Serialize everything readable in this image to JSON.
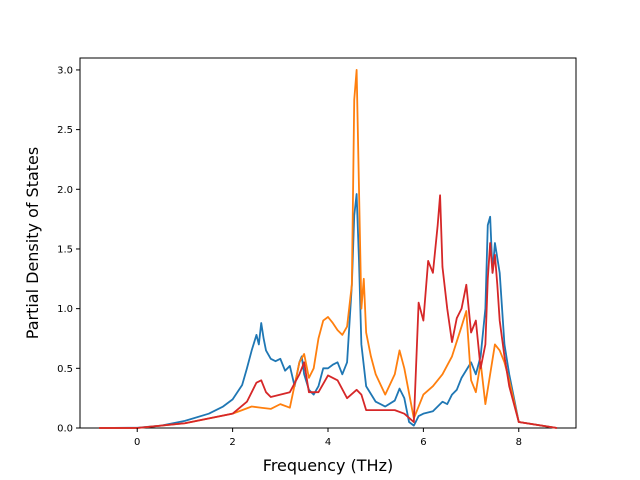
{
  "chart_data": {
    "type": "line",
    "title": "",
    "xlabel": "Frequency (THz)",
    "ylabel": "Partial Density of States",
    "xlim": [
      -1.2,
      9.2
    ],
    "ylim": [
      0,
      3.1
    ],
    "xticks": [
      0,
      2,
      4,
      6,
      8
    ],
    "xtick_labels": [
      "0",
      "2",
      "4",
      "6",
      "8"
    ],
    "yticks": [
      0,
      0.5,
      1.0,
      1.5,
      2.0,
      2.5,
      3.0
    ],
    "ytick_labels": [
      "0.0",
      "0.5",
      "1.0",
      "1.5",
      "2.0",
      "2.5",
      "3.0"
    ],
    "grid": false,
    "legend": "none",
    "series": [
      {
        "color": "#1f77b4",
        "x": [
          -0.8,
          0,
          0.5,
          1.0,
          1.5,
          1.8,
          2.0,
          2.2,
          2.3,
          2.4,
          2.5,
          2.55,
          2.6,
          2.65,
          2.7,
          2.8,
          2.9,
          3.0,
          3.1,
          3.2,
          3.3,
          3.4,
          3.45,
          3.5,
          3.6,
          3.7,
          3.8,
          3.9,
          4.0,
          4.1,
          4.2,
          4.3,
          4.4,
          4.5,
          4.55,
          4.6,
          4.65,
          4.7,
          4.8,
          5.0,
          5.2,
          5.4,
          5.5,
          5.6,
          5.7,
          5.8,
          5.9,
          6.0,
          6.2,
          6.4,
          6.5,
          6.6,
          6.7,
          6.8,
          7.0,
          7.1,
          7.2,
          7.3,
          7.35,
          7.4,
          7.45,
          7.5,
          7.6,
          7.7,
          7.8,
          8.0,
          8.8
        ],
        "y": [
          0,
          0.002,
          0.02,
          0.06,
          0.12,
          0.18,
          0.24,
          0.36,
          0.5,
          0.65,
          0.78,
          0.7,
          0.88,
          0.75,
          0.65,
          0.58,
          0.56,
          0.58,
          0.48,
          0.52,
          0.35,
          0.55,
          0.6,
          0.45,
          0.32,
          0.28,
          0.35,
          0.5,
          0.5,
          0.53,
          0.55,
          0.45,
          0.55,
          1.2,
          1.78,
          1.96,
          1.4,
          0.7,
          0.35,
          0.22,
          0.18,
          0.23,
          0.33,
          0.25,
          0.05,
          0.02,
          0.1,
          0.12,
          0.14,
          0.22,
          0.2,
          0.28,
          0.32,
          0.42,
          0.55,
          0.45,
          0.6,
          1.0,
          1.7,
          1.77,
          1.3,
          1.55,
          1.3,
          0.7,
          0.45,
          0.05,
          0.0
        ]
      },
      {
        "color": "#ff7f0e",
        "x": [
          -0.8,
          0,
          1.0,
          2.0,
          2.2,
          2.4,
          2.6,
          2.8,
          3.0,
          3.2,
          3.4,
          3.5,
          3.6,
          3.7,
          3.8,
          3.9,
          4.0,
          4.1,
          4.2,
          4.3,
          4.4,
          4.5,
          4.55,
          4.6,
          4.65,
          4.7,
          4.75,
          4.8,
          4.9,
          5.0,
          5.2,
          5.4,
          5.5,
          5.6,
          5.8,
          6.0,
          6.2,
          6.4,
          6.6,
          6.8,
          6.9,
          7.0,
          7.1,
          7.2,
          7.3,
          7.4,
          7.5,
          7.6,
          7.7,
          7.8,
          8.0,
          8.8
        ],
        "y": [
          0,
          0.0,
          0.04,
          0.12,
          0.15,
          0.18,
          0.17,
          0.16,
          0.2,
          0.17,
          0.55,
          0.62,
          0.42,
          0.5,
          0.75,
          0.9,
          0.93,
          0.88,
          0.82,
          0.78,
          0.85,
          1.2,
          2.75,
          3.0,
          2.0,
          1.0,
          1.25,
          0.8,
          0.6,
          0.45,
          0.28,
          0.45,
          0.65,
          0.5,
          0.08,
          0.28,
          0.35,
          0.45,
          0.6,
          0.85,
          0.98,
          0.4,
          0.3,
          0.55,
          0.2,
          0.45,
          0.7,
          0.65,
          0.55,
          0.4,
          0.05,
          0.0
        ]
      },
      {
        "color": "#d62728",
        "x": [
          -0.8,
          0,
          1.0,
          2.0,
          2.3,
          2.5,
          2.6,
          2.7,
          2.8,
          3.0,
          3.2,
          3.4,
          3.5,
          3.6,
          3.8,
          4.0,
          4.2,
          4.4,
          4.6,
          4.7,
          4.8,
          5.0,
          5.4,
          5.6,
          5.8,
          5.9,
          6.0,
          6.1,
          6.2,
          6.3,
          6.35,
          6.4,
          6.5,
          6.6,
          6.7,
          6.8,
          6.9,
          7.0,
          7.1,
          7.2,
          7.3,
          7.35,
          7.4,
          7.45,
          7.5,
          7.55,
          7.6,
          7.7,
          7.8,
          8.0,
          8.8
        ],
        "y": [
          0,
          0.0,
          0.04,
          0.12,
          0.22,
          0.38,
          0.4,
          0.3,
          0.26,
          0.28,
          0.3,
          0.45,
          0.55,
          0.3,
          0.3,
          0.44,
          0.4,
          0.25,
          0.32,
          0.28,
          0.15,
          0.15,
          0.15,
          0.12,
          0.05,
          1.05,
          0.9,
          1.4,
          1.3,
          1.7,
          1.95,
          1.35,
          1.0,
          0.72,
          0.92,
          1.0,
          1.2,
          0.8,
          0.9,
          0.5,
          0.7,
          1.25,
          1.55,
          1.3,
          1.45,
          1.2,
          0.9,
          0.6,
          0.35,
          0.05,
          0.0
        ]
      }
    ]
  }
}
